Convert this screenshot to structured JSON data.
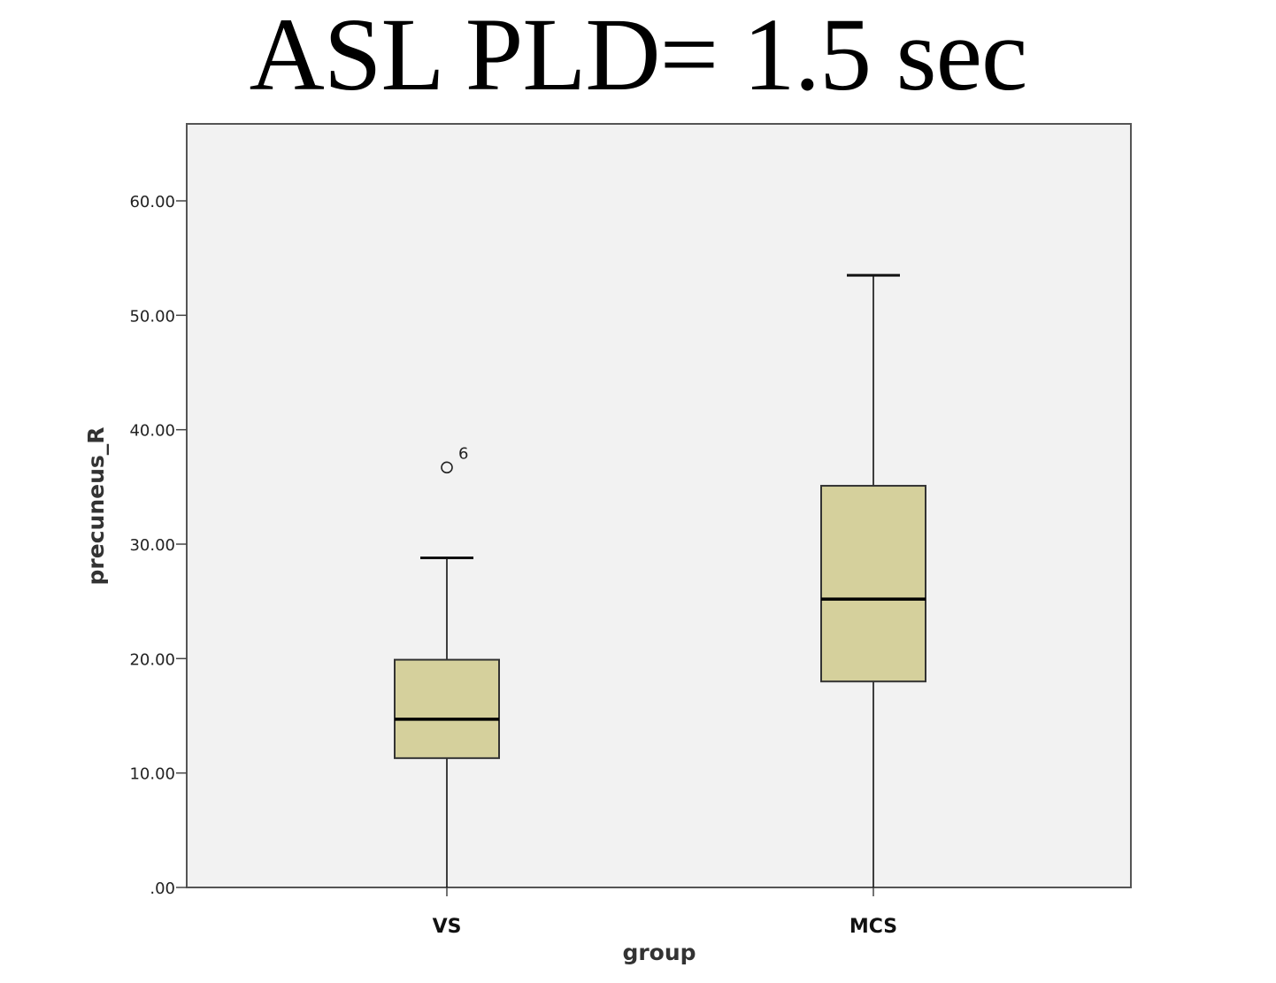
{
  "chart_data": {
    "type": "box",
    "title": "ASL PLD= 1.5 sec",
    "xlabel": "group",
    "ylabel": "precuneus_R",
    "ylim": [
      0,
      66.5
    ],
    "yticks": [
      0,
      10,
      20,
      30,
      40,
      50,
      60
    ],
    "ytick_labels": [
      ".00",
      "10.00",
      "20.00",
      "30.00",
      "40.00",
      "50.00",
      "60.00"
    ],
    "categories": [
      "VS",
      "MCS"
    ],
    "boxes": [
      {
        "category": "VS",
        "min": 0,
        "q1": 11.3,
        "median": 14.7,
        "q3": 19.9,
        "max": 28.8,
        "outliers": [
          {
            "value": 36.7,
            "label": "6"
          }
        ]
      },
      {
        "category": "MCS",
        "min": 0,
        "q1": 18.0,
        "median": 25.2,
        "q3": 35.1,
        "max": 53.5,
        "outliers": []
      }
    ],
    "box_fill": "#d5d09c",
    "plot_background": "#f2f2f2",
    "grid": false,
    "legend": "none"
  }
}
